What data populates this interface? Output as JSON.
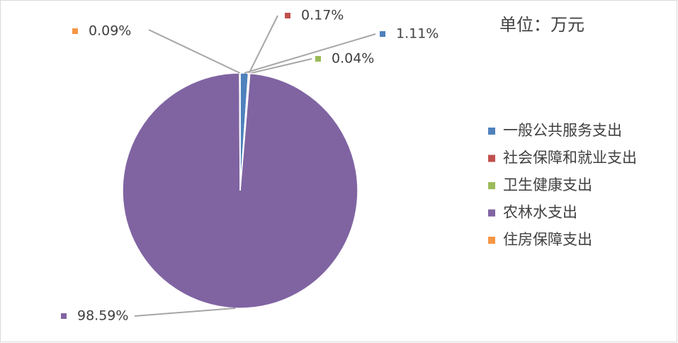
{
  "chart_data": {
    "type": "pie",
    "annotation": "单位：万元",
    "categories": [
      "一般公共服务支出",
      "社会保障和就业支出",
      "卫生健康支出",
      "农林水支出",
      "住房保障支出"
    ],
    "values": [
      1.11,
      0.17,
      0.04,
      98.59,
      0.09
    ],
    "value_labels": [
      "1.11%",
      "0.17%",
      "0.04%",
      "98.59%",
      "0.09%"
    ],
    "colors": [
      "#4f81bd",
      "#c0504d",
      "#9bbb59",
      "#8064a2",
      "#f79646"
    ],
    "legend": "right"
  }
}
